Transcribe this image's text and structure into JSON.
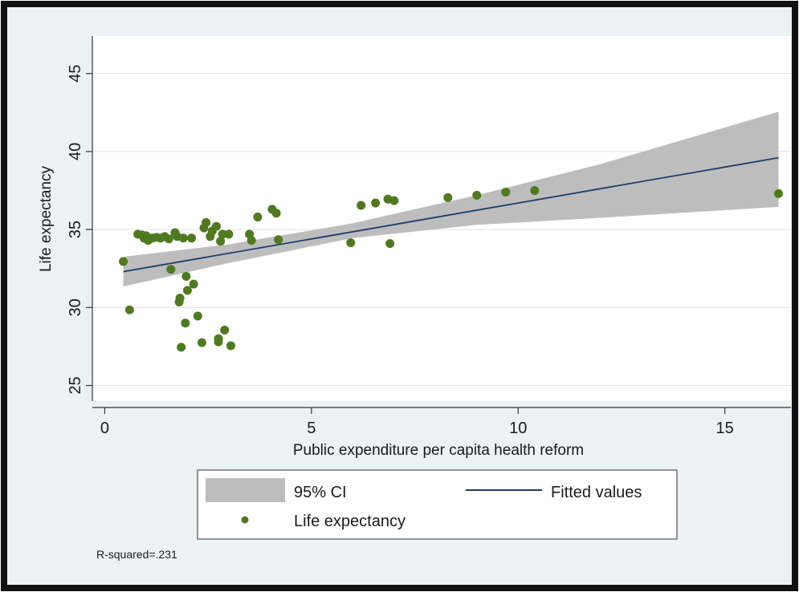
{
  "chart_data": {
    "type": "scatter",
    "xlabel": "Public expenditure per capita health reform",
    "ylabel": "Life expectancy",
    "xlim": [
      -0.3,
      16.6
    ],
    "ylim": [
      24,
      47.4
    ],
    "x_ticks": [
      {
        "value": 0,
        "label": "0"
      },
      {
        "value": 5,
        "label": "5"
      },
      {
        "value": 10,
        "label": "10"
      },
      {
        "value": 15,
        "label": "15"
      }
    ],
    "y_ticks": [
      {
        "value": 25,
        "label": "25"
      },
      {
        "value": 30,
        "label": "30"
      },
      {
        "value": 35,
        "label": "35"
      },
      {
        "value": 40,
        "label": "40"
      },
      {
        "value": 45,
        "label": "45"
      }
    ],
    "grid": "horizontal",
    "colors": {
      "plot_background": "#ffffff",
      "outer_background": "#eaf2f3",
      "ci_fill": "#bdbdbd",
      "fitted_line": "#1a3d66",
      "points": "#4f7a1f",
      "frame": "#111111"
    },
    "series": [
      {
        "name": "Life expectancy",
        "kind": "scatter",
        "points": [
          [
            0.45,
            32.95
          ],
          [
            0.6,
            29.85
          ],
          [
            0.8,
            34.7
          ],
          [
            0.9,
            34.65
          ],
          [
            0.95,
            34.45
          ],
          [
            1.0,
            34.6
          ],
          [
            1.05,
            34.3
          ],
          [
            1.15,
            34.45
          ],
          [
            1.25,
            34.5
          ],
          [
            1.35,
            34.45
          ],
          [
            1.45,
            34.55
          ],
          [
            1.55,
            34.4
          ],
          [
            1.6,
            32.45
          ],
          [
            1.7,
            34.8
          ],
          [
            1.75,
            34.55
          ],
          [
            1.8,
            30.35
          ],
          [
            1.82,
            30.6
          ],
          [
            1.85,
            27.45
          ],
          [
            1.9,
            34.45
          ],
          [
            1.95,
            29.0
          ],
          [
            1.97,
            32.0
          ],
          [
            2.0,
            31.1
          ],
          [
            2.1,
            34.45
          ],
          [
            2.15,
            31.5
          ],
          [
            2.25,
            29.45
          ],
          [
            2.35,
            27.75
          ],
          [
            2.4,
            35.1
          ],
          [
            2.45,
            35.45
          ],
          [
            2.55,
            34.55
          ],
          [
            2.6,
            34.9
          ],
          [
            2.7,
            35.2
          ],
          [
            2.75,
            28.0
          ],
          [
            2.75,
            27.8
          ],
          [
            2.8,
            34.25
          ],
          [
            2.85,
            34.7
          ],
          [
            2.9,
            28.55
          ],
          [
            3.0,
            34.7
          ],
          [
            3.05,
            27.55
          ],
          [
            3.5,
            34.7
          ],
          [
            3.55,
            34.3
          ],
          [
            3.7,
            35.8
          ],
          [
            4.05,
            36.3
          ],
          [
            4.15,
            36.05
          ],
          [
            4.2,
            34.35
          ],
          [
            5.95,
            34.15
          ],
          [
            6.2,
            36.55
          ],
          [
            6.55,
            36.7
          ],
          [
            6.85,
            36.95
          ],
          [
            6.9,
            34.1
          ],
          [
            7.0,
            36.85
          ],
          [
            8.3,
            37.05
          ],
          [
            9.0,
            37.2
          ],
          [
            9.7,
            37.4
          ],
          [
            10.4,
            37.5
          ],
          [
            16.3,
            37.3
          ]
        ]
      },
      {
        "name": "Fitted values",
        "kind": "line",
        "x": [
          0.45,
          16.3
        ],
        "y": [
          32.3,
          39.6
        ]
      },
      {
        "name": "95% CI",
        "kind": "band",
        "x": [
          0.45,
          3.0,
          6.0,
          9.0,
          12.0,
          16.3
        ],
        "upper": [
          33.25,
          34.05,
          35.4,
          37.2,
          39.2,
          42.55
        ],
        "lower": [
          31.35,
          32.85,
          34.45,
          35.3,
          35.75,
          36.45
        ]
      }
    ],
    "legend": {
      "placement": "bottom",
      "items": [
        {
          "label": "95% CI",
          "symbol": "band"
        },
        {
          "label": "Fitted values",
          "symbol": "line"
        },
        {
          "label": "Life expectancy",
          "symbol": "marker"
        }
      ]
    },
    "note": "R-squared=.231"
  }
}
